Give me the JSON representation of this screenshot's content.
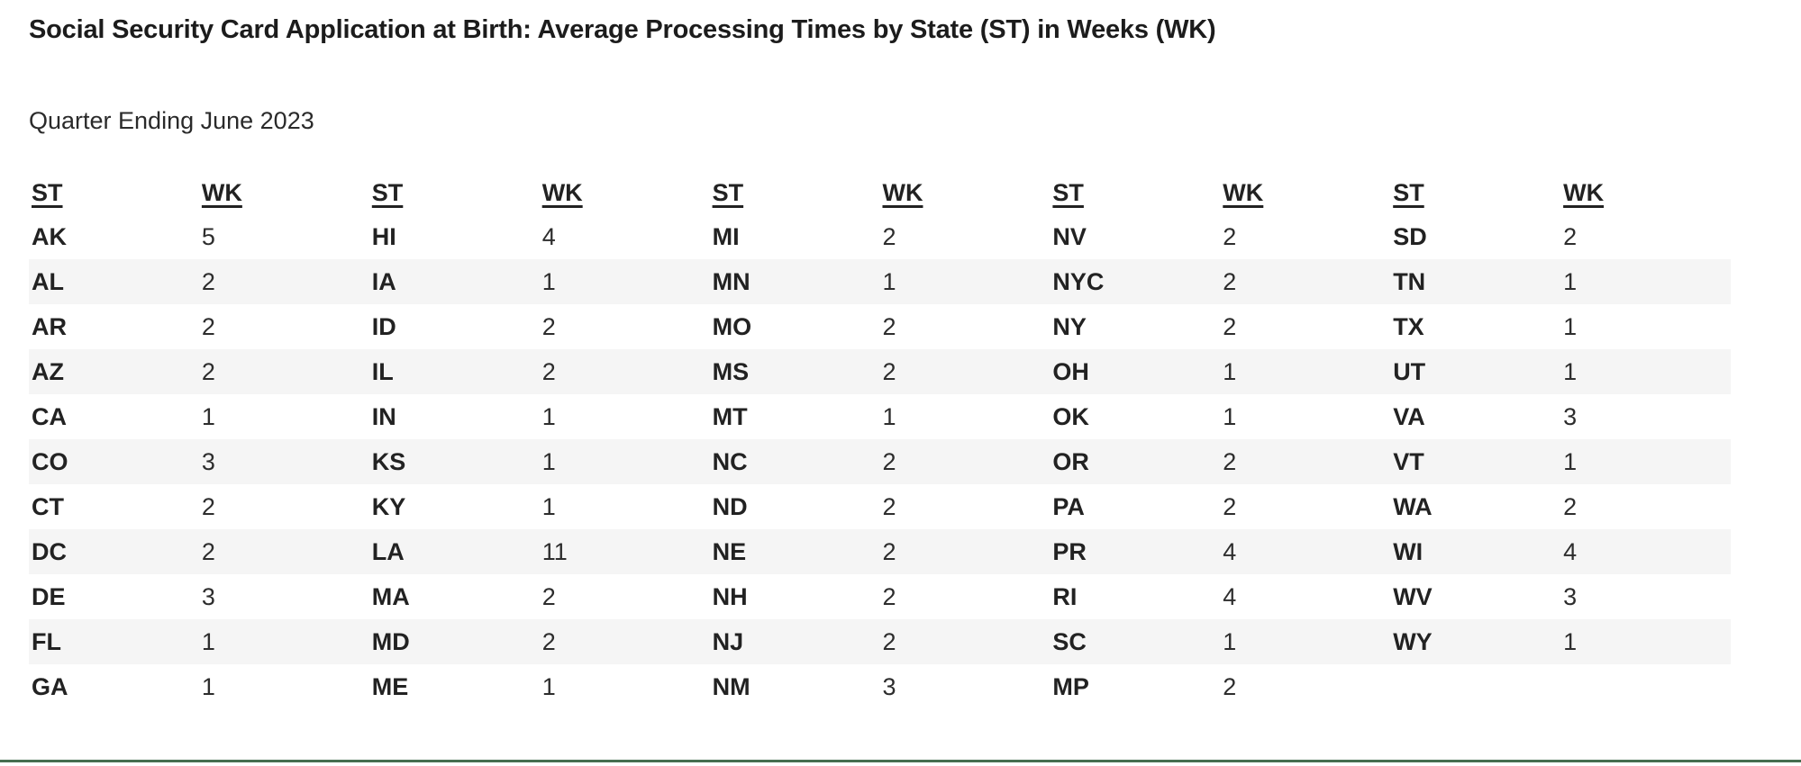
{
  "page": {
    "title": "Social Security Card Application at Birth: Average Processing Times by State (ST) in Weeks (WK)",
    "subtitle": "Quarter Ending June 2023"
  },
  "table": {
    "column_headers": [
      "ST",
      "WK",
      "ST",
      "WK",
      "ST",
      "WK",
      "ST",
      "WK",
      "ST",
      "WK"
    ],
    "rows": [
      [
        "AK",
        "5",
        "HI",
        "4",
        "MI",
        "2",
        "NV",
        "2",
        "SD",
        "2"
      ],
      [
        "AL",
        "2",
        "IA",
        "1",
        "MN",
        "1",
        "NYC",
        "2",
        "TN",
        "1"
      ],
      [
        "AR",
        "2",
        "ID",
        "2",
        "MO",
        "2",
        "NY",
        "2",
        "TX",
        "1"
      ],
      [
        "AZ",
        "2",
        "IL",
        "2",
        "MS",
        "2",
        "OH",
        "1",
        "UT",
        "1"
      ],
      [
        "CA",
        "1",
        "IN",
        "1",
        "MT",
        "1",
        "OK",
        "1",
        "VA",
        "3"
      ],
      [
        "CO",
        "3",
        "KS",
        "1",
        "NC",
        "2",
        "OR",
        "2",
        "VT",
        "1"
      ],
      [
        "CT",
        "2",
        "KY",
        "1",
        "ND",
        "2",
        "PA",
        "2",
        "WA",
        "2"
      ],
      [
        "DC",
        "2",
        "LA",
        "11",
        "NE",
        "2",
        "PR",
        "4",
        "WI",
        "4"
      ],
      [
        "DE",
        "3",
        "MA",
        "2",
        "NH",
        "2",
        "RI",
        "4",
        "WV",
        "3"
      ],
      [
        "FL",
        "1",
        "MD",
        "2",
        "NJ",
        "2",
        "SC",
        "1",
        "WY",
        "1"
      ],
      [
        "GA",
        "1",
        "ME",
        "1",
        "NM",
        "3",
        "MP",
        "2",
        "",
        ""
      ]
    ]
  },
  "colors": {
    "row_stripe": "#f5f5f5",
    "bottom_border": "#466e50",
    "text": "#252525"
  }
}
